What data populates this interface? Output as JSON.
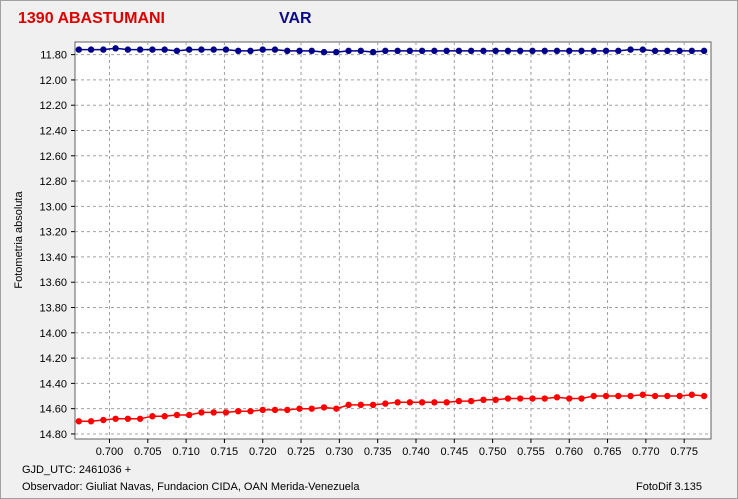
{
  "header": {
    "comparison_star": "1390 ABASTUMANI",
    "variable_label": "VAR"
  },
  "footer": {
    "gjd": "GJD_UTC: 2461036 +",
    "observer": "Observador: Giuliat Navas, Fundacion CIDA, OAN  Merida-Venezuela",
    "software": "FotoDif 3.135"
  },
  "colors": {
    "comparison": "#ff0000",
    "variable": "#00008b",
    "grid": "#a0a0a0"
  },
  "chart_data": {
    "type": "scatter",
    "ylabel": "Fotometria absoluta",
    "xlabel": "",
    "xlim": [
      0.6955,
      0.7785
    ],
    "ylim": [
      11.7,
      14.84
    ],
    "y_inverted": true,
    "grid": true,
    "x_ticks": [
      "0.700",
      "0.705",
      "0.710",
      "0.715",
      "0.720",
      "0.725",
      "0.730",
      "0.735",
      "0.740",
      "0.745",
      "0.750",
      "0.755",
      "0.760",
      "0.765",
      "0.770",
      "0.775"
    ],
    "y_ticks": [
      "11.80",
      "12.00",
      "12.20",
      "12.40",
      "12.60",
      "12.80",
      "13.00",
      "13.20",
      "13.40",
      "13.60",
      "13.80",
      "14.00",
      "14.20",
      "14.40",
      "14.60",
      "14.80"
    ],
    "series": [
      {
        "name": "VAR",
        "color": "#00008b",
        "x": [
          0.696,
          0.6976,
          0.6992,
          0.7008,
          0.7024,
          0.704,
          0.7056,
          0.7072,
          0.7088,
          0.7104,
          0.712,
          0.7136,
          0.7152,
          0.7168,
          0.7184,
          0.72,
          0.7216,
          0.7232,
          0.7248,
          0.7264,
          0.728,
          0.7296,
          0.7312,
          0.7328,
          0.7344,
          0.736,
          0.7376,
          0.7392,
          0.7408,
          0.7424,
          0.744,
          0.7456,
          0.7472,
          0.7488,
          0.7504,
          0.752,
          0.7536,
          0.7552,
          0.7568,
          0.7584,
          0.76,
          0.7616,
          0.7632,
          0.7648,
          0.7664,
          0.768,
          0.7696,
          0.7712,
          0.7728,
          0.7744,
          0.776,
          0.7776
        ],
        "y": [
          11.76,
          11.76,
          11.76,
          11.75,
          11.76,
          11.76,
          11.76,
          11.76,
          11.77,
          11.76,
          11.76,
          11.76,
          11.76,
          11.77,
          11.77,
          11.76,
          11.76,
          11.77,
          11.77,
          11.77,
          11.78,
          11.78,
          11.77,
          11.77,
          11.78,
          11.77,
          11.77,
          11.77,
          11.77,
          11.77,
          11.77,
          11.77,
          11.77,
          11.77,
          11.77,
          11.77,
          11.77,
          11.77,
          11.77,
          11.77,
          11.77,
          11.77,
          11.77,
          11.77,
          11.77,
          11.76,
          11.76,
          11.77,
          11.77,
          11.77,
          11.77,
          11.77
        ]
      },
      {
        "name": "1390 ABASTUMANI",
        "color": "#ff0000",
        "x": [
          0.696,
          0.6976,
          0.6992,
          0.7008,
          0.7024,
          0.704,
          0.7056,
          0.7072,
          0.7088,
          0.7104,
          0.712,
          0.7136,
          0.7152,
          0.7168,
          0.7184,
          0.72,
          0.7216,
          0.7232,
          0.7248,
          0.7264,
          0.728,
          0.7296,
          0.7312,
          0.7328,
          0.7344,
          0.736,
          0.7376,
          0.7392,
          0.7408,
          0.7424,
          0.744,
          0.7456,
          0.7472,
          0.7488,
          0.7504,
          0.752,
          0.7536,
          0.7552,
          0.7568,
          0.7584,
          0.76,
          0.7616,
          0.7632,
          0.7648,
          0.7664,
          0.768,
          0.7696,
          0.7712,
          0.7728,
          0.7744,
          0.776,
          0.7776
        ],
        "y": [
          14.7,
          14.7,
          14.69,
          14.68,
          14.68,
          14.68,
          14.66,
          14.66,
          14.65,
          14.65,
          14.63,
          14.63,
          14.63,
          14.62,
          14.62,
          14.61,
          14.61,
          14.61,
          14.6,
          14.6,
          14.59,
          14.6,
          14.57,
          14.57,
          14.57,
          14.56,
          14.55,
          14.55,
          14.55,
          14.55,
          14.55,
          14.54,
          14.54,
          14.53,
          14.53,
          14.52,
          14.52,
          14.52,
          14.52,
          14.51,
          14.52,
          14.52,
          14.5,
          14.5,
          14.5,
          14.5,
          14.49,
          14.5,
          14.5,
          14.5,
          14.49,
          14.5
        ]
      }
    ]
  }
}
